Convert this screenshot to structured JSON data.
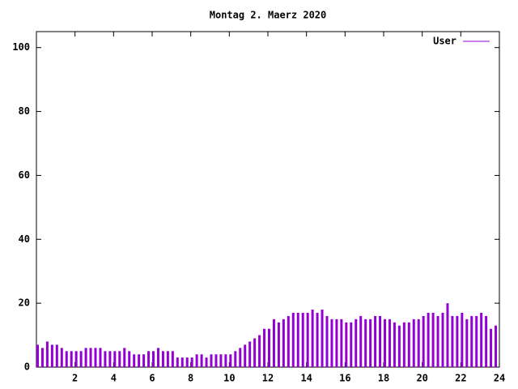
{
  "chart_data": {
    "type": "impulses",
    "title": "Montag 2. Maerz 2020",
    "x": [
      0,
      0.25,
      0.5,
      0.75,
      1,
      1.25,
      1.5,
      1.75,
      2,
      2.25,
      2.5,
      2.75,
      3,
      3.25,
      3.5,
      3.75,
      4,
      4.25,
      4.5,
      4.75,
      5,
      5.25,
      5.5,
      5.75,
      6,
      6.25,
      6.5,
      6.75,
      7,
      7.25,
      7.5,
      7.75,
      8,
      8.25,
      8.5,
      8.75,
      9,
      9.25,
      9.5,
      9.75,
      10,
      10.25,
      10.5,
      10.75,
      11,
      11.25,
      11.5,
      11.75,
      12,
      12.25,
      12.5,
      12.75,
      13,
      13.25,
      13.5,
      13.75,
      14,
      14.25,
      14.5,
      14.75,
      15,
      15.25,
      15.5,
      15.75,
      16,
      16.25,
      16.5,
      16.75,
      17,
      17.25,
      17.5,
      17.75,
      18,
      18.25,
      18.5,
      18.75,
      19,
      19.25,
      19.5,
      19.75,
      20,
      20.25,
      20.5,
      20.75,
      21,
      21.25,
      21.5,
      21.75,
      22,
      22.25,
      22.5,
      22.75,
      23,
      23.25,
      23.5,
      23.75
    ],
    "series": [
      {
        "name": "User",
        "color": "#9400d3",
        "values": [
          7,
          6,
          8,
          7,
          7,
          6,
          5,
          5,
          5,
          5,
          6,
          6,
          6,
          6,
          5,
          5,
          5,
          5,
          6,
          5,
          4,
          4,
          4,
          5,
          5,
          6,
          5,
          5,
          5,
          3,
          3,
          3,
          3,
          4,
          4,
          3,
          4,
          4,
          4,
          4,
          4,
          5,
          6,
          7,
          8,
          9,
          10,
          12,
          12,
          15,
          14,
          15,
          16,
          17,
          17,
          17,
          17,
          18,
          17,
          18,
          16,
          15,
          15,
          15,
          14,
          14,
          15,
          16,
          15,
          15,
          16,
          16,
          15,
          15,
          14,
          13,
          14,
          14,
          15,
          15,
          16,
          17,
          17,
          16,
          17,
          20,
          16,
          16,
          17,
          15,
          16,
          16,
          17,
          16,
          12,
          13
        ]
      }
    ],
    "xlim": [
      0,
      24
    ],
    "xticks": [
      2,
      4,
      6,
      8,
      10,
      12,
      14,
      16,
      18,
      20,
      22,
      24
    ],
    "ylim": [
      0,
      105
    ],
    "yticks": [
      0,
      20,
      40,
      60,
      80,
      100
    ],
    "legend": "top right"
  }
}
